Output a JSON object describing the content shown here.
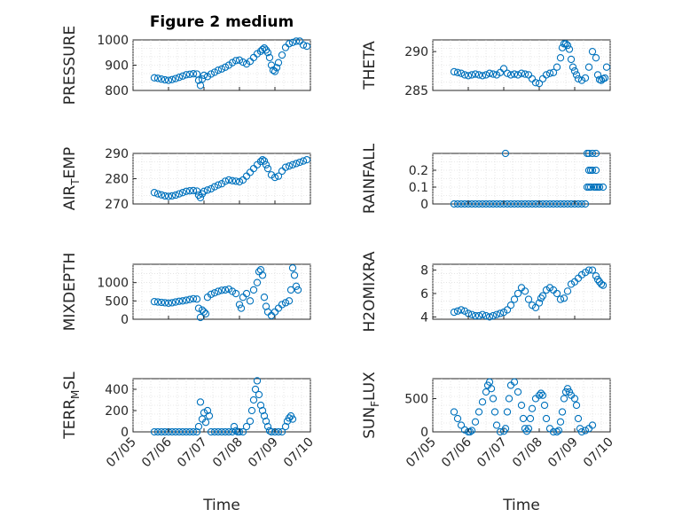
{
  "window_title": "Figure 2 medium",
  "chart_data": [
    {
      "type": "scatter",
      "title": "Figure 2 medium",
      "ylabel": "PRESSURE",
      "xlabel": "",
      "xlim": [
        0,
        5
      ],
      "ylim": [
        800,
        1000
      ],
      "yticks": [
        800,
        900,
        1000
      ],
      "xtick_labels": [
        "07/05",
        "07/06",
        "07/07",
        "07/08",
        "07/09",
        "07/10"
      ],
      "grid": true,
      "color": "#0072BD",
      "series": [
        {
          "x": [
            0.6,
            0.7,
            0.8,
            0.9,
            1.0,
            1.1,
            1.2,
            1.3,
            1.4,
            1.5,
            1.6,
            1.7,
            1.8,
            1.85,
            1.9,
            1.95,
            2.0,
            2.1,
            2.2,
            2.3,
            2.4,
            2.5,
            2.6,
            2.7,
            2.8,
            2.9,
            3.0,
            3.1,
            3.2,
            3.3,
            3.4,
            3.5,
            3.6,
            3.65,
            3.7,
            3.75,
            3.8,
            3.85,
            3.9,
            3.95,
            4.0,
            4.05,
            4.1,
            4.2,
            4.3,
            4.4,
            4.5,
            4.6,
            4.7,
            4.8,
            4.9
          ],
          "y": [
            850,
            848,
            845,
            842,
            840,
            843,
            847,
            852,
            857,
            862,
            864,
            866,
            865,
            840,
            820,
            845,
            860,
            855,
            865,
            872,
            880,
            885,
            892,
            900,
            910,
            918,
            920,
            912,
            905,
            915,
            930,
            945,
            955,
            962,
            968,
            960,
            950,
            930,
            900,
            880,
            875,
            890,
            910,
            940,
            970,
            985,
            990,
            995,
            995,
            980,
            975
          ]
        }
      ]
    },
    {
      "type": "scatter",
      "ylabel": "THETA",
      "xlabel": "",
      "xlim": [
        0,
        5
      ],
      "ylim": [
        285,
        291.5
      ],
      "yticks": [
        285,
        290
      ],
      "xtick_labels": [
        "07/05",
        "07/06",
        "07/07",
        "07/08",
        "07/09",
        "07/10"
      ],
      "grid": true,
      "color": "#0072BD",
      "series": [
        {
          "x": [
            0.6,
            0.7,
            0.8,
            0.9,
            1.0,
            1.1,
            1.2,
            1.3,
            1.4,
            1.5,
            1.6,
            1.7,
            1.8,
            1.9,
            2.0,
            2.1,
            2.2,
            2.3,
            2.4,
            2.5,
            2.6,
            2.7,
            2.8,
            2.9,
            3.0,
            3.1,
            3.2,
            3.3,
            3.4,
            3.5,
            3.6,
            3.65,
            3.7,
            3.75,
            3.8,
            3.85,
            3.9,
            3.95,
            4.0,
            4.05,
            4.1,
            4.2,
            4.3,
            4.4,
            4.5,
            4.6,
            4.65,
            4.7,
            4.75,
            4.8,
            4.85,
            4.9
          ],
          "y": [
            287.4,
            287.3,
            287.2,
            287.0,
            286.9,
            287.0,
            287.1,
            287.0,
            286.9,
            287.0,
            287.2,
            287.1,
            287.0,
            287.3,
            287.8,
            287.2,
            287.0,
            287.1,
            287.0,
            287.2,
            287.1,
            287.0,
            286.5,
            286.0,
            285.9,
            286.5,
            287.0,
            287.2,
            287.3,
            288.0,
            289.2,
            290.5,
            291.0,
            291.0,
            290.8,
            290.3,
            289.0,
            288.0,
            287.5,
            287.0,
            286.5,
            286.3,
            286.6,
            288.0,
            290.0,
            289.2,
            287.0,
            286.4,
            286.3,
            286.5,
            286.6,
            288.0
          ]
        }
      ]
    },
    {
      "type": "scatter",
      "ylabel": "AIR_TEMP",
      "xlabel": "",
      "xlim": [
        0,
        5
      ],
      "ylim": [
        270,
        290
      ],
      "yticks": [
        270,
        280,
        290
      ],
      "xtick_labels": [
        "07/05",
        "07/06",
        "07/07",
        "07/08",
        "07/09",
        "07/10"
      ],
      "grid": true,
      "color": "#0072BD",
      "series": [
        {
          "x": [
            0.6,
            0.7,
            0.8,
            0.9,
            1.0,
            1.1,
            1.2,
            1.3,
            1.4,
            1.5,
            1.6,
            1.7,
            1.8,
            1.85,
            1.9,
            1.95,
            2.0,
            2.1,
            2.2,
            2.3,
            2.4,
            2.5,
            2.6,
            2.7,
            2.8,
            2.9,
            3.0,
            3.1,
            3.2,
            3.3,
            3.4,
            3.5,
            3.6,
            3.65,
            3.7,
            3.75,
            3.8,
            3.9,
            4.0,
            4.1,
            4.2,
            4.3,
            4.4,
            4.5,
            4.6,
            4.7,
            4.8,
            4.9
          ],
          "y": [
            274.5,
            274.0,
            273.6,
            273.2,
            273.0,
            273.2,
            273.5,
            274.0,
            274.5,
            275.0,
            275.2,
            275.3,
            275.1,
            273.5,
            272.5,
            274.0,
            275.0,
            275.5,
            276.0,
            276.8,
            277.5,
            278.0,
            279.0,
            279.5,
            279.2,
            279.0,
            278.8,
            279.5,
            281.0,
            282.5,
            284.0,
            285.5,
            286.8,
            287.5,
            287.0,
            285.5,
            284.0,
            281.5,
            280.5,
            281.0,
            283.0,
            284.5,
            285.0,
            285.5,
            286.0,
            286.5,
            287.0,
            287.5
          ]
        }
      ]
    },
    {
      "type": "scatter",
      "ylabel": "RAINFALL",
      "xlabel": "",
      "xlim": [
        0,
        5
      ],
      "ylim": [
        0,
        0.3
      ],
      "yticks": [
        0,
        0.1,
        0.2
      ],
      "xtick_labels": [
        "07/05",
        "07/06",
        "07/07",
        "07/08",
        "07/09",
        "07/10"
      ],
      "grid": true,
      "color": "#0072BD",
      "series": [
        {
          "x": [
            0.6,
            0.7,
            0.8,
            0.9,
            1.0,
            1.1,
            1.2,
            1.3,
            1.4,
            1.5,
            1.6,
            1.7,
            1.8,
            1.9,
            2.0,
            2.1,
            2.2,
            2.3,
            2.4,
            2.5,
            2.6,
            2.7,
            2.8,
            2.9,
            3.0,
            3.1,
            3.2,
            3.3,
            3.4,
            3.5,
            3.6,
            3.7,
            3.8,
            3.9,
            4.0,
            4.1,
            4.2,
            4.3,
            4.35,
            4.4,
            4.4,
            4.4,
            4.45,
            4.5,
            4.5,
            4.55,
            4.6,
            4.6,
            4.6,
            4.65,
            4.7,
            4.8,
            2.05,
            4.35,
            4.45
          ],
          "y": [
            0,
            0,
            0,
            0,
            0,
            0,
            0,
            0,
            0,
            0,
            0,
            0,
            0,
            0,
            0,
            0,
            0,
            0,
            0,
            0,
            0,
            0,
            0,
            0,
            0,
            0,
            0,
            0,
            0,
            0,
            0,
            0,
            0,
            0,
            0,
            0,
            0,
            0,
            0.1,
            0.2,
            0.1,
            0.3,
            0.1,
            0.2,
            0.3,
            0.1,
            0.2,
            0.1,
            0.3,
            0.1,
            0.1,
            0.1,
            0.3,
            0.3,
            0.2
          ]
        }
      ]
    },
    {
      "type": "scatter",
      "ylabel": "MIXDEPTH",
      "xlabel": "",
      "xlim": [
        0,
        5
      ],
      "ylim": [
        0,
        1500
      ],
      "yticks": [
        0,
        500,
        1000
      ],
      "xtick_labels": [
        "07/05",
        "07/06",
        "07/07",
        "07/08",
        "07/09",
        "07/10"
      ],
      "grid": true,
      "color": "#0072BD",
      "series": [
        {
          "x": [
            0.6,
            0.7,
            0.8,
            0.9,
            1.0,
            1.1,
            1.2,
            1.3,
            1.4,
            1.5,
            1.6,
            1.7,
            1.8,
            1.85,
            1.9,
            1.95,
            2.0,
            2.05,
            2.1,
            2.2,
            2.3,
            2.4,
            2.5,
            2.6,
            2.7,
            2.8,
            2.9,
            3.0,
            3.05,
            3.1,
            3.2,
            3.3,
            3.4,
            3.5,
            3.55,
            3.6,
            3.65,
            3.7,
            3.75,
            3.8,
            3.9,
            4.0,
            4.1,
            4.2,
            4.3,
            4.4,
            4.45,
            4.5,
            4.55,
            4.6,
            4.65
          ],
          "y": [
            480,
            470,
            460,
            450,
            440,
            450,
            470,
            490,
            500,
            520,
            540,
            560,
            550,
            300,
            50,
            250,
            200,
            150,
            600,
            680,
            720,
            760,
            790,
            800,
            820,
            760,
            700,
            400,
            300,
            600,
            700,
            500,
            800,
            1000,
            1300,
            1350,
            1200,
            600,
            350,
            200,
            100,
            200,
            300,
            400,
            450,
            500,
            800,
            1400,
            1200,
            900,
            800
          ]
        }
      ]
    },
    {
      "type": "scatter",
      "ylabel": "H2OMIXRA",
      "xlabel": "",
      "xlim": [
        0,
        5
      ],
      "ylim": [
        3.8,
        8.5
      ],
      "yticks": [
        4,
        6,
        8
      ],
      "xtick_labels": [
        "07/05",
        "07/06",
        "07/07",
        "07/08",
        "07/09",
        "07/10"
      ],
      "grid": true,
      "color": "#0072BD",
      "series": [
        {
          "x": [
            0.6,
            0.7,
            0.8,
            0.9,
            1.0,
            1.1,
            1.2,
            1.3,
            1.4,
            1.5,
            1.6,
            1.7,
            1.8,
            1.9,
            2.0,
            2.1,
            2.2,
            2.3,
            2.4,
            2.5,
            2.6,
            2.7,
            2.8,
            2.9,
            3.0,
            3.05,
            3.1,
            3.2,
            3.3,
            3.4,
            3.5,
            3.6,
            3.7,
            3.8,
            3.9,
            4.0,
            4.1,
            4.2,
            4.3,
            4.4,
            4.5,
            4.6,
            4.65,
            4.7,
            4.75,
            4.8
          ],
          "y": [
            4.4,
            4.5,
            4.6,
            4.5,
            4.3,
            4.2,
            4.1,
            4.1,
            4.2,
            4.1,
            4.0,
            4.1,
            4.2,
            4.3,
            4.4,
            4.6,
            5.0,
            5.5,
            6.0,
            6.5,
            6.2,
            5.5,
            5.0,
            4.8,
            5.2,
            5.6,
            5.8,
            6.3,
            6.5,
            6.3,
            6.0,
            5.5,
            5.6,
            6.2,
            6.8,
            7.0,
            7.3,
            7.6,
            7.8,
            8.0,
            8.0,
            7.5,
            7.2,
            7.0,
            6.8,
            6.7
          ]
        }
      ]
    },
    {
      "type": "scatter",
      "ylabel": "TERR_MSL",
      "xlabel": "Time",
      "xlim": [
        0,
        5
      ],
      "ylim": [
        0,
        500
      ],
      "yticks": [
        0,
        200,
        400
      ],
      "xtick_labels": [
        "07/05",
        "07/06",
        "07/07",
        "07/08",
        "07/09",
        "07/10"
      ],
      "grid": true,
      "color": "#0072BD",
      "series": [
        {
          "x": [
            0.6,
            0.7,
            0.8,
            0.9,
            1.0,
            1.1,
            1.2,
            1.3,
            1.4,
            1.5,
            1.6,
            1.7,
            1.8,
            1.85,
            1.9,
            1.95,
            2.0,
            2.05,
            2.1,
            2.15,
            2.2,
            2.3,
            2.4,
            2.5,
            2.6,
            2.7,
            2.8,
            2.85,
            2.9,
            2.95,
            3.0,
            3.1,
            3.2,
            3.3,
            3.35,
            3.4,
            3.45,
            3.5,
            3.55,
            3.6,
            3.65,
            3.7,
            3.75,
            3.8,
            3.85,
            3.9,
            4.0,
            4.1,
            4.2,
            4.3,
            4.35,
            4.4,
            4.45,
            4.5
          ],
          "y": [
            0,
            0,
            0,
            0,
            0,
            0,
            0,
            0,
            0,
            0,
            0,
            0,
            0,
            50,
            280,
            120,
            180,
            90,
            200,
            150,
            0,
            0,
            0,
            0,
            0,
            0,
            0,
            50,
            10,
            0,
            0,
            0,
            50,
            100,
            200,
            300,
            400,
            480,
            350,
            250,
            200,
            150,
            100,
            50,
            10,
            0,
            0,
            0,
            0,
            50,
            100,
            130,
            150,
            120
          ]
        }
      ]
    },
    {
      "type": "scatter",
      "ylabel": "SUN_FLUX",
      "xlabel": "Time",
      "xlim": [
        0,
        5
      ],
      "ylim": [
        0,
        800
      ],
      "yticks": [
        0,
        500
      ],
      "xtick_labels": [
        "07/05",
        "07/06",
        "07/07",
        "07/08",
        "07/09",
        "07/10"
      ],
      "grid": true,
      "color": "#0072BD",
      "series": [
        {
          "x": [
            0.6,
            0.7,
            0.8,
            0.9,
            1.0,
            1.05,
            1.1,
            1.2,
            1.3,
            1.4,
            1.5,
            1.55,
            1.6,
            1.65,
            1.7,
            1.75,
            1.8,
            1.9,
            2.0,
            2.05,
            2.1,
            2.15,
            2.2,
            2.3,
            2.4,
            2.5,
            2.55,
            2.6,
            2.65,
            2.7,
            2.75,
            2.8,
            2.9,
            3.0,
            3.05,
            3.1,
            3.15,
            3.2,
            3.3,
            3.4,
            3.5,
            3.55,
            3.6,
            3.65,
            3.7,
            3.75,
            3.8,
            3.85,
            3.9,
            4.0,
            4.05,
            4.1,
            4.15,
            4.2,
            4.3,
            4.4,
            4.5
          ],
          "y": [
            300,
            200,
            100,
            30,
            0,
            0,
            20,
            150,
            300,
            450,
            600,
            700,
            750,
            650,
            500,
            300,
            100,
            0,
            10,
            50,
            300,
            500,
            700,
            750,
            600,
            400,
            200,
            50,
            10,
            50,
            200,
            350,
            500,
            550,
            580,
            550,
            400,
            200,
            50,
            0,
            0,
            20,
            150,
            300,
            500,
            600,
            650,
            600,
            550,
            500,
            400,
            200,
            50,
            0,
            20,
            50,
            100
          ]
        }
      ]
    }
  ]
}
